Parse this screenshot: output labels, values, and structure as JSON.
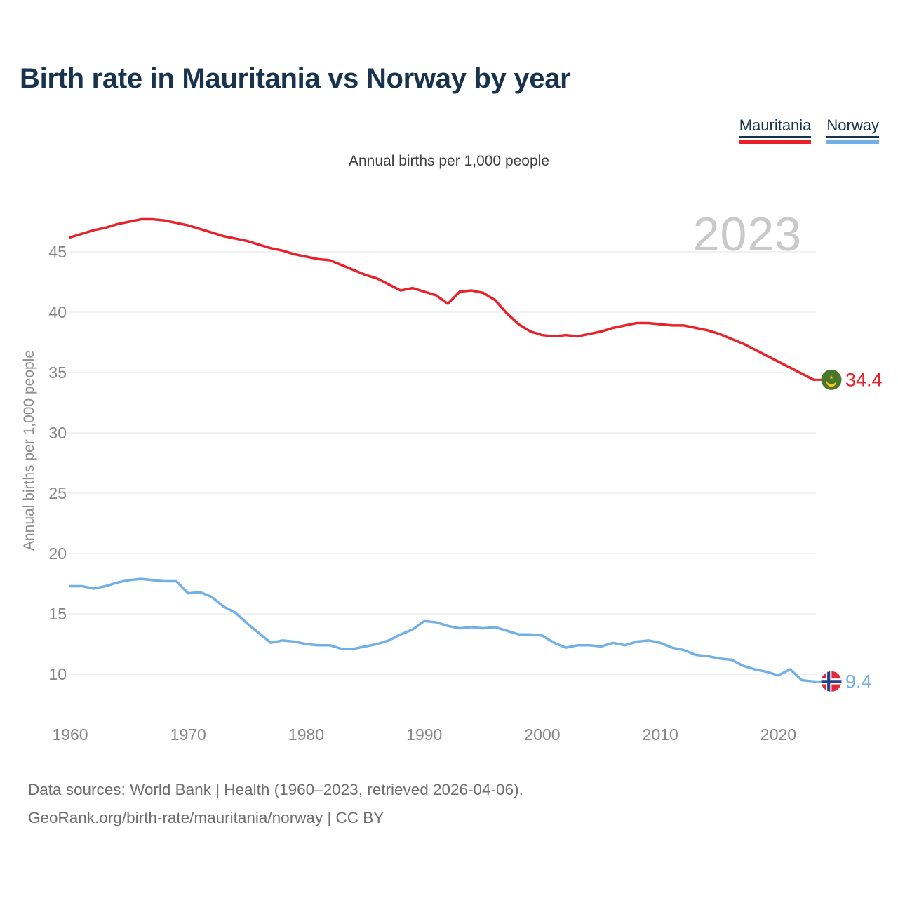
{
  "header": {
    "title": "Birth rate in Mauritania vs Norway by year",
    "legend": [
      {
        "label": "Mauritania",
        "color": "#e8222a"
      },
      {
        "label": "Norway",
        "color": "#70b0e6"
      }
    ]
  },
  "subtitle": "Annual births per 1,000 people",
  "watermark": "2023",
  "chart_data": {
    "type": "line",
    "title": "Birth rate in Mauritania vs Norway by year",
    "ylabel": "Annual births per 1,000 people",
    "legend_position": "top-right",
    "grid": "horizontal",
    "x": [
      1960,
      1961,
      1962,
      1963,
      1964,
      1965,
      1966,
      1967,
      1968,
      1969,
      1970,
      1971,
      1972,
      1973,
      1974,
      1975,
      1976,
      1977,
      1978,
      1979,
      1980,
      1981,
      1982,
      1983,
      1984,
      1985,
      1986,
      1987,
      1988,
      1989,
      1990,
      1991,
      1992,
      1993,
      1994,
      1995,
      1996,
      1997,
      1998,
      1999,
      2000,
      2001,
      2002,
      2003,
      2004,
      2005,
      2006,
      2007,
      2008,
      2009,
      2010,
      2011,
      2012,
      2013,
      2014,
      2015,
      2016,
      2017,
      2018,
      2019,
      2020,
      2021,
      2022,
      2023
    ],
    "series": [
      {
        "name": "Mauritania",
        "color": "#e8222a",
        "end_label": "34.4",
        "flag": {
          "name": "mauritania-flag-icon",
          "bg": "#4a7729",
          "emblem": "#f5c617"
        },
        "values": [
          46.2,
          46.5,
          46.8,
          47.0,
          47.3,
          47.5,
          47.7,
          47.7,
          47.6,
          47.4,
          47.2,
          46.9,
          46.6,
          46.3,
          46.1,
          45.9,
          45.6,
          45.3,
          45.1,
          44.8,
          44.6,
          44.4,
          44.3,
          43.9,
          43.5,
          43.1,
          42.8,
          42.3,
          41.8,
          42.0,
          41.7,
          41.4,
          40.7,
          41.7,
          41.8,
          41.6,
          41.0,
          39.9,
          39.0,
          38.4,
          38.1,
          38.0,
          38.1,
          38.0,
          38.2,
          38.4,
          38.7,
          38.9,
          39.1,
          39.1,
          39.0,
          38.9,
          38.9,
          38.7,
          38.5,
          38.2,
          37.8,
          37.4,
          36.9,
          36.4,
          35.9,
          35.4,
          34.9,
          34.4
        ]
      },
      {
        "name": "Norway",
        "color": "#70b0e6",
        "end_label": "9.4",
        "flag": {
          "name": "norway-flag-icon",
          "bg": "#e02a3b",
          "cross": "#26418f",
          "cross_outline": "#ffffff"
        },
        "values": [
          17.3,
          17.3,
          17.1,
          17.3,
          17.6,
          17.8,
          17.9,
          17.8,
          17.7,
          17.7,
          16.7,
          16.8,
          16.4,
          15.6,
          15.1,
          14.2,
          13.4,
          12.6,
          12.8,
          12.7,
          12.5,
          12.4,
          12.4,
          12.1,
          12.1,
          12.3,
          12.5,
          12.8,
          13.3,
          13.7,
          14.4,
          14.3,
          14.0,
          13.8,
          13.9,
          13.8,
          13.9,
          13.6,
          13.3,
          13.3,
          13.2,
          12.6,
          12.2,
          12.4,
          12.4,
          12.3,
          12.6,
          12.4,
          12.7,
          12.8,
          12.6,
          12.2,
          12.0,
          11.6,
          11.5,
          11.3,
          11.2,
          10.7,
          10.4,
          10.2,
          9.9,
          10.4,
          9.5,
          9.4
        ]
      }
    ],
    "y_ticks": [
      45,
      40,
      35,
      30,
      25,
      20,
      15,
      10
    ],
    "x_ticks": [
      1960,
      1970,
      1980,
      1990,
      2000,
      2010,
      2020
    ],
    "ylim": [
      8.5,
      48.5
    ],
    "xlim": [
      1960,
      2023
    ]
  },
  "footer": {
    "line1": "Data sources: World Bank | Health (1960–2023, retrieved 2026-04-06).",
    "line2": "GeoRank.org/birth-rate/mauritania/norway | CC BY"
  }
}
